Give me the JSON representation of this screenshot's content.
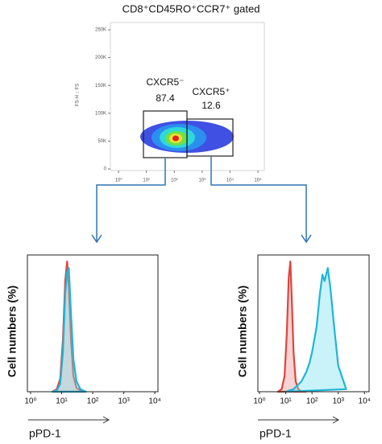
{
  "title": "CD8⁺CD45RO⁺CCR7⁺ gated",
  "chart_data": [
    {
      "type": "density",
      "ylabel": "FS-H :: FS",
      "log_x": true,
      "xlim": [
        0.51,
        170000
      ],
      "ylim": [
        -2900,
        263000
      ],
      "xticks": [
        {
          "value": 1,
          "label": "10⁰"
        },
        {
          "value": 10,
          "label": "10¹"
        },
        {
          "value": 100,
          "label": "10²"
        },
        {
          "value": 1000,
          "label": "10³"
        },
        {
          "value": 10000,
          "label": "10⁴"
        },
        {
          "value": 100000,
          "label": "10⁵"
        }
      ],
      "yticks": [
        0,
        {
          "value": 50000,
          "label": "50K"
        },
        {
          "value": 100000,
          "label": "100K"
        },
        {
          "value": 150000,
          "label": "150K"
        },
        {
          "value": 200000,
          "label": "200K"
        },
        {
          "value": 250000,
          "label": "250K"
        }
      ],
      "gates": [
        {
          "label": "CXCR5⁻",
          "value": 87.4
        },
        {
          "label": "CXCR5⁺",
          "value": 12.6
        }
      ]
    },
    {
      "type": "histogram_curve",
      "xlabel": "pPD-1",
      "ylabel": "Cell numbers (%)",
      "log_x": true,
      "xlim": [
        0.79,
        12600
      ],
      "ylim": [
        0,
        105
      ],
      "xticks": [
        {
          "value": 1,
          "label": "10⁰"
        },
        {
          "value": 10,
          "label": "10¹"
        },
        {
          "value": 100,
          "label": "10²"
        },
        {
          "value": 1000,
          "label": "10³"
        },
        {
          "value": 10000,
          "label": "10⁴"
        }
      ],
      "series": [
        {
          "color": "#e0443c",
          "x": [
            5,
            7,
            9,
            11,
            13,
            15,
            17,
            20,
            24,
            30,
            40,
            60
          ],
          "values": [
            0,
            2,
            10,
            40,
            85,
            100,
            80,
            40,
            12,
            3,
            1,
            0
          ]
        },
        {
          "color": "#1fb6d6",
          "x": [
            5,
            7,
            9,
            11,
            13,
            15,
            17,
            20,
            24,
            30,
            40,
            60
          ],
          "values": [
            0,
            1,
            6,
            30,
            75,
            92,
            95,
            60,
            25,
            8,
            2,
            0
          ]
        }
      ]
    },
    {
      "type": "histogram_curve",
      "xlabel": "pPD-1",
      "ylabel": "Cell numbers (%)",
      "log_x": true,
      "xlim": [
        0.87,
        15000
      ],
      "ylim": [
        0,
        105
      ],
      "xticks": [
        {
          "value": 1,
          "label": "10⁰"
        },
        {
          "value": 10,
          "label": "10¹"
        },
        {
          "value": 100,
          "label": "10²"
        },
        {
          "value": 1000,
          "label": "10³"
        },
        {
          "value": 10000,
          "label": "10⁴"
        }
      ],
      "series": [
        {
          "color": "#e0443c",
          "x": [
            5,
            7,
            9,
            11,
            13,
            15,
            17,
            20,
            24,
            30,
            40,
            60
          ],
          "values": [
            0,
            2,
            12,
            45,
            88,
            100,
            70,
            30,
            8,
            2,
            0,
            0
          ]
        },
        {
          "color": "#1fb6d6",
          "x": [
            10,
            20,
            40,
            60,
            80,
            100,
            150,
            200,
            250,
            300,
            400,
            500,
            700,
            1000,
            2000
          ],
          "values": [
            0,
            2,
            8,
            15,
            22,
            30,
            50,
            75,
            90,
            85,
            95,
            80,
            50,
            20,
            2
          ]
        }
      ]
    }
  ]
}
